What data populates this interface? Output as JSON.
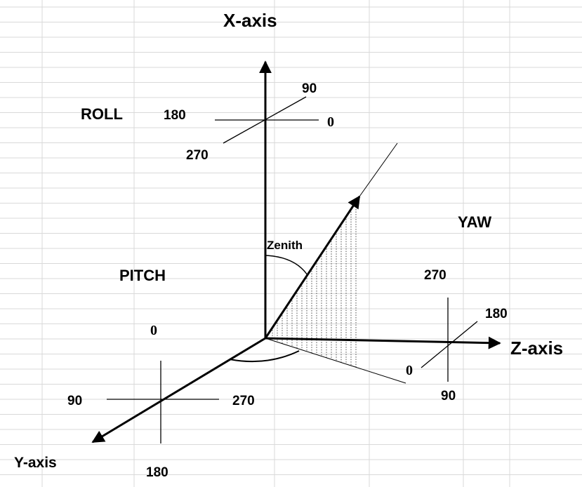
{
  "axes": {
    "x": "X-axis",
    "y": "Y-axis",
    "z": "Z-axis"
  },
  "roll": {
    "title": "ROLL",
    "top": "90",
    "left": "180",
    "right": "0",
    "bottom": "270"
  },
  "pitch": {
    "title": "PITCH",
    "top": "0",
    "left": "90",
    "right": "270",
    "bottom": "180"
  },
  "yaw": {
    "title": "YAW",
    "top": "270",
    "right": "180",
    "left": "0",
    "bottom": "90"
  },
  "zenith": "Zenith",
  "colors": {
    "grid": "#d9d9d9",
    "ink": "#000000"
  }
}
